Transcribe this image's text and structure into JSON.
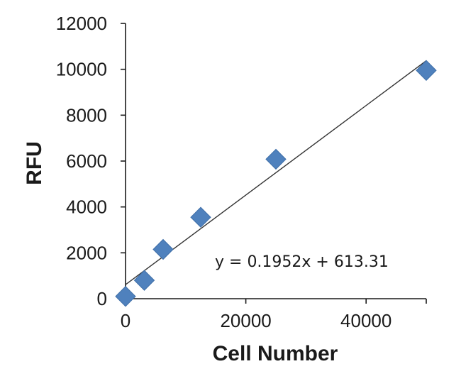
{
  "chart_data": {
    "type": "scatter",
    "xlabel": "Cell Number",
    "ylabel": "RFU",
    "xlim": [
      0,
      50000
    ],
    "ylim": [
      0,
      12000
    ],
    "x_ticks": [
      0,
      20000,
      40000
    ],
    "y_ticks": [
      0,
      2000,
      4000,
      6000,
      8000,
      10000,
      12000
    ],
    "x_tick_labels": [
      "0",
      "20000",
      "40000"
    ],
    "y_tick_labels": [
      "0",
      "2000",
      "4000",
      "6000",
      "8000",
      "10000",
      "12000"
    ],
    "grid": false,
    "legend": "none",
    "series": [
      {
        "marker": "diamond",
        "color": "#4f81bd",
        "x": [
          0,
          3125,
          6250,
          12500,
          25000,
          50000
        ],
        "y": [
          100,
          800,
          2150,
          3550,
          6080,
          9950
        ]
      }
    ],
    "trendline": {
      "type": "linear",
      "slope": 0.1952,
      "intercept": 613.31,
      "color": "#333333",
      "equation_label": "y = 0.1952x + 613.31"
    }
  }
}
